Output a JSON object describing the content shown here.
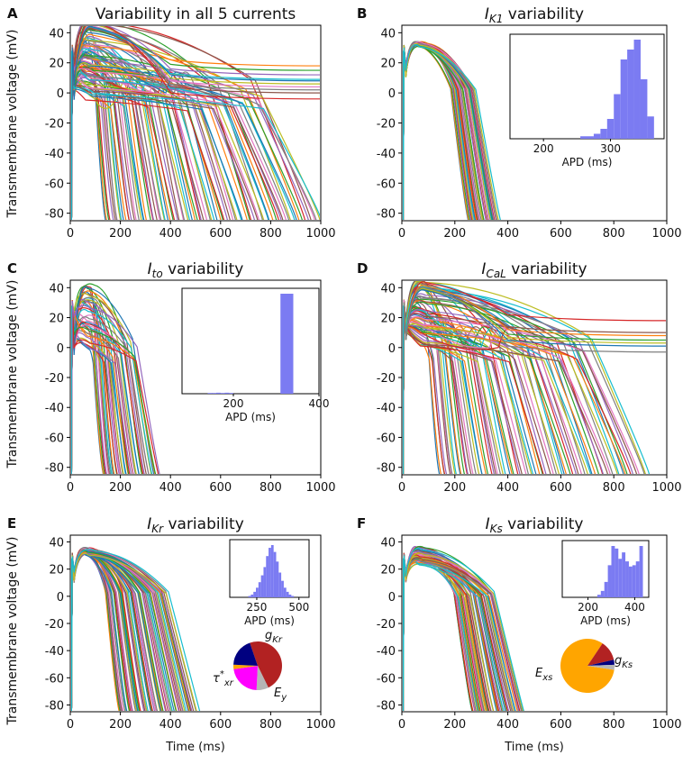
{
  "figure": {
    "ylabel": "Transmembrane voltage (mV)",
    "xlabel": "Time (ms)",
    "x_ticks": [
      0,
      200,
      400,
      600,
      800,
      1000
    ],
    "y_ticks": [
      -80,
      -60,
      -40,
      -20,
      0,
      20,
      40
    ],
    "colors": [
      "#1f77b4",
      "#ff7f0e",
      "#2ca02c",
      "#d62728",
      "#9467bd",
      "#8c564b",
      "#e377c2",
      "#7f7f7f",
      "#bcbd22",
      "#17becf"
    ],
    "hist_color": "#7b7bf2"
  },
  "chart_data": [
    {
      "type": "line",
      "letter": "A",
      "title": "Variability in all 5 currents",
      "title_main": "Variability in all 5 currents",
      "title_sub": "",
      "title_rest": "",
      "xlim": [
        0,
        1000
      ],
      "ylim": [
        -85,
        45
      ],
      "n_traces": 90,
      "apd_range": [
        130,
        990
      ],
      "plateau": [
        -5,
        48
      ],
      "notch": 0.55,
      "ead": true,
      "stuck": [
        [
          18,
          "#ff7f0e"
        ],
        [
          15,
          "#2ca02c"
        ],
        [
          12,
          "#9467bd"
        ],
        [
          9,
          "#17becf"
        ],
        [
          6,
          "#bcbd22"
        ],
        [
          4,
          "#e377c2"
        ],
        [
          2,
          "#7f7f7f"
        ],
        [
          0,
          "#8c564b"
        ],
        [
          -4,
          "#d62728"
        ],
        [
          8,
          "#1f77b4"
        ]
      ]
    },
    {
      "type": "line",
      "letter": "B",
      "title": "IK1 variability",
      "title_main": "I",
      "title_sub": "K1",
      "title_rest": " variability",
      "xlim": [
        0,
        1000
      ],
      "ylim": [
        -85,
        45
      ],
      "n_traces": 40,
      "apd_range": [
        240,
        355
      ],
      "plateau": [
        30,
        33
      ],
      "notch": 0.3,
      "ead": false,
      "stuck": [],
      "inset": {
        "xlabel": "APD (ms)",
        "xticks": [
          200,
          300
        ],
        "xlim": [
          150,
          380
        ],
        "bins": [
          [
            255,
            265,
            1
          ],
          [
            265,
            275,
            1
          ],
          [
            275,
            285,
            2
          ],
          [
            285,
            295,
            4
          ],
          [
            295,
            305,
            8
          ],
          [
            305,
            315,
            18
          ],
          [
            315,
            325,
            32
          ],
          [
            325,
            335,
            36
          ],
          [
            335,
            345,
            40
          ],
          [
            345,
            355,
            24
          ],
          [
            355,
            365,
            9
          ]
        ]
      }
    },
    {
      "type": "line",
      "letter": "C",
      "title": "Ito variability",
      "title_main": "I",
      "title_sub": "to",
      "title_rest": " variability",
      "xlim": [
        0,
        1000
      ],
      "ylim": [
        -85,
        45
      ],
      "n_traces": 45,
      "apd_range": [
        120,
        340
      ],
      "plateau": [
        -2,
        42
      ],
      "notch": 0.7,
      "ead": false,
      "stuck": [],
      "inset": {
        "xlabel": "APD (ms)",
        "xticks": [
          200,
          400
        ],
        "xlim": [
          80,
          400
        ],
        "bins": [
          [
            140,
            150,
            0.3
          ],
          [
            150,
            160,
            0.3
          ],
          [
            160,
            170,
            0.4
          ],
          [
            170,
            180,
            0.3
          ],
          [
            180,
            190,
            0.4
          ],
          [
            190,
            200,
            0.3
          ],
          [
            310,
            340,
            40
          ]
        ]
      }
    },
    {
      "type": "line",
      "letter": "D",
      "title": "ICaL variability",
      "title_main": "I",
      "title_sub": "CaL",
      "title_rest": " variability",
      "xlim": [
        0,
        1000
      ],
      "ylim": [
        -85,
        45
      ],
      "n_traces": 80,
      "apd_range": [
        130,
        920
      ],
      "plateau": [
        0,
        46
      ],
      "notch": 0.3,
      "ead": true,
      "stuck": [
        [
          18,
          "#d62728"
        ],
        [
          10,
          "#8c564b"
        ],
        [
          8,
          "#ff7f0e"
        ],
        [
          5,
          "#2ca02c"
        ],
        [
          3,
          "#bcbd22"
        ],
        [
          1,
          "#1f77b4"
        ],
        [
          -3,
          "#7f7f7f"
        ]
      ]
    },
    {
      "type": "line",
      "letter": "E",
      "title": "IKr variability",
      "title_main": "I",
      "title_sub": "Kr",
      "title_rest": " variability",
      "xlim": [
        0,
        1000
      ],
      "ylim": [
        -85,
        45
      ],
      "n_traces": 70,
      "apd_range": [
        180,
        500
      ],
      "plateau": [
        30,
        35
      ],
      "notch": 0.3,
      "ead": false,
      "stuck": [],
      "inset": {
        "xlabel": "APD (ms)",
        "xticks": [
          250,
          500
        ],
        "xlim": [
          90,
          560
        ],
        "bins": [
          [
            200,
            215,
            1
          ],
          [
            215,
            230,
            2
          ],
          [
            230,
            245,
            4
          ],
          [
            245,
            260,
            7
          ],
          [
            260,
            275,
            11
          ],
          [
            275,
            290,
            16
          ],
          [
            290,
            305,
            22
          ],
          [
            305,
            320,
            30
          ],
          [
            320,
            335,
            36
          ],
          [
            335,
            350,
            38
          ],
          [
            350,
            365,
            33
          ],
          [
            365,
            380,
            26
          ],
          [
            380,
            395,
            18
          ],
          [
            395,
            410,
            12
          ],
          [
            410,
            425,
            7
          ],
          [
            425,
            440,
            4
          ],
          [
            440,
            455,
            2
          ],
          [
            455,
            470,
            1
          ]
        ]
      },
      "pie": {
        "slices": [
          {
            "label": "gKr",
            "value": 48,
            "color": "#b22222"
          },
          {
            "label": "",
            "value": 8,
            "color": "#b5b5b5"
          },
          {
            "label": "Ey",
            "value": 22,
            "color": "#ff00ff"
          },
          {
            "label": "",
            "value": 3,
            "color": "#ffa500"
          },
          {
            "label": "tau*xr",
            "value": 19,
            "color": "#000080"
          }
        ],
        "labels": {
          "gKr": {
            "main": "g",
            "sub": "Kr"
          },
          "Ey": {
            "main": "E",
            "sub": "y"
          },
          "tau": {
            "main": "τ",
            "sub": "xr",
            "sup": "*"
          }
        }
      }
    },
    {
      "type": "line",
      "letter": "F",
      "title": "IKs variability",
      "title_main": "I",
      "title_sub": "Ks",
      "title_rest": " variability",
      "xlim": [
        0,
        1000
      ],
      "ylim": [
        -85,
        45
      ],
      "n_traces": 60,
      "apd_range": [
        250,
        450
      ],
      "plateau": [
        22,
        36
      ],
      "notch": 0.3,
      "ead": false,
      "stuck": [],
      "inset": {
        "xlabel": "APD (ms)",
        "xticks": [
          200,
          400
        ],
        "xlim": [
          90,
          460
        ],
        "bins": [
          [
            240,
            255,
            2
          ],
          [
            255,
            270,
            5
          ],
          [
            270,
            285,
            12
          ],
          [
            285,
            300,
            25
          ],
          [
            300,
            315,
            40
          ],
          [
            315,
            330,
            38
          ],
          [
            330,
            345,
            30
          ],
          [
            345,
            360,
            35
          ],
          [
            360,
            375,
            28
          ],
          [
            375,
            390,
            24
          ],
          [
            390,
            405,
            25
          ],
          [
            405,
            420,
            28
          ],
          [
            420,
            435,
            40
          ]
        ]
      },
      "pie": {
        "slices": [
          {
            "label": "Exs",
            "value": 82,
            "color": "#ffa500"
          },
          {
            "label": "gKs",
            "value": 12,
            "color": "#b22222"
          },
          {
            "label": "",
            "value": 3,
            "color": "#000080"
          },
          {
            "label": "",
            "value": 3,
            "color": "#b5b5b5"
          }
        ],
        "labels": {
          "Exs": {
            "main": "E",
            "sub": "xs"
          },
          "gKs": {
            "main": "g",
            "sub": "Ks"
          }
        }
      }
    }
  ]
}
